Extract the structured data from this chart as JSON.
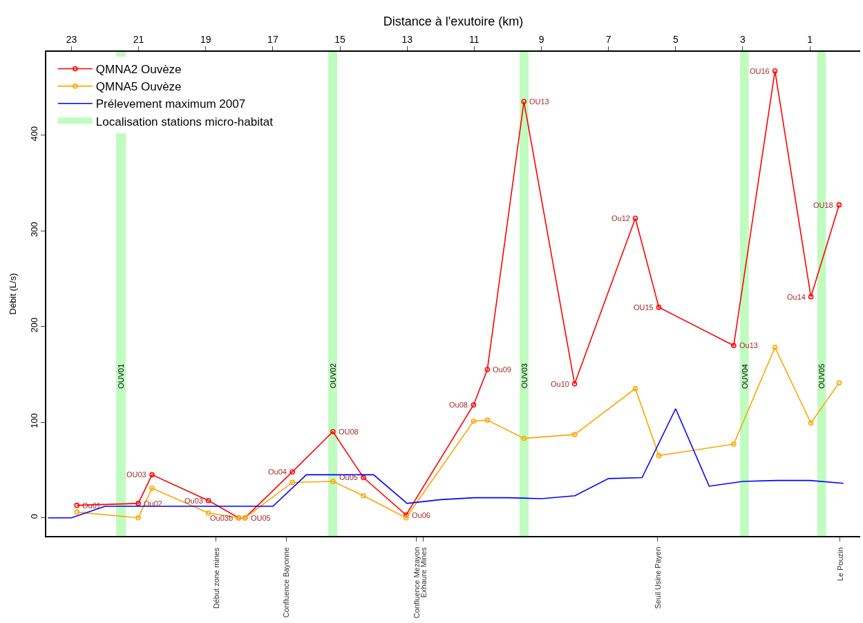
{
  "chart_data": {
    "type": "line",
    "xlabel": "Distance à l'exutoire (km)",
    "ylabel": "Débit (L/s)",
    "x": [
      22.84,
      21.01,
      20.6,
      18.92,
      18.02,
      17.83,
      16.42,
      15.21,
      14.3,
      13.03,
      11.02,
      10.61,
      9.52,
      8.01,
      6.2,
      5.5,
      3.27,
      2.04,
      0.97,
      0.13
    ],
    "series": [
      {
        "name": "QMNA2 Ouvèze",
        "color": "#ff0000",
        "marker": "circle",
        "values": [
          13,
          15,
          45,
          18,
          0,
          0,
          48,
          90,
          42,
          3,
          118,
          155,
          435,
          140,
          313,
          220,
          180,
          467,
          231,
          327
        ]
      },
      {
        "name": "QMNA5 Ouvèze",
        "color": "#ffa500",
        "marker": "circle",
        "values": [
          6,
          0,
          31,
          5,
          0,
          0,
          37,
          38,
          23,
          0,
          101,
          102,
          83,
          87,
          135,
          65,
          77,
          178,
          99,
          141
        ]
      },
      {
        "name": "Prélevement maximum 2007",
        "color": "#0000ff",
        "marker": "none",
        "x": [
          23.7,
          23,
          22,
          17,
          16,
          14,
          13,
          12,
          11,
          10,
          9,
          8,
          7,
          6,
          5,
          4,
          3,
          2,
          1,
          0
        ],
        "values": [
          0,
          0,
          12,
          12,
          45,
          45,
          15,
          19,
          21,
          21,
          20,
          23,
          41,
          42,
          114,
          33,
          38,
          39,
          39,
          36
        ]
      }
    ],
    "bands": [
      {
        "axis": "x",
        "from": 21.67,
        "to": 21.38,
        "color": "#c0fcc0",
        "label": "OUV01"
      },
      {
        "axis": "x",
        "from": 15.35,
        "to": 15.08,
        "color": "#c0fcc0",
        "label": "OUV02"
      },
      {
        "axis": "x",
        "from": 9.65,
        "to": 9.38,
        "color": "#c0fcc0",
        "label": "OUV03"
      },
      {
        "axis": "x",
        "from": 3.08,
        "to": 2.82,
        "color": "#c0fcc0",
        "label": "OUV04"
      },
      {
        "axis": "x",
        "from": 0.78,
        "to": 0.52,
        "color": "#c0fcc0",
        "label": "OUV05"
      }
    ],
    "annotations": [
      "Localisation stations micro-habitat",
      {
        "text": "Ou01",
        "x": 22.84,
        "y": 13
      },
      {
        "text": "Ou02",
        "x": 21.01,
        "y": 15
      },
      {
        "text": "OU03",
        "x": 20.6,
        "y": 45
      },
      {
        "text": "Ou03",
        "x": 18.92,
        "y": 18
      },
      {
        "text": "Ou03b",
        "x": 18.02,
        "y": 0
      },
      {
        "text": "OU05",
        "x": 17.83,
        "y": 0
      },
      {
        "text": "Ou04",
        "x": 16.42,
        "y": 48
      },
      {
        "text": "OU08",
        "x": 15.21,
        "y": 90
      },
      {
        "text": "Ou05",
        "x": 14.3,
        "y": 42
      },
      {
        "text": "Ou06",
        "x": 13.03,
        "y": 3
      },
      {
        "text": "Ou08",
        "x": 11.02,
        "y": 118
      },
      {
        "text": "Ou09",
        "x": 10.61,
        "y": 155
      },
      {
        "text": "OU13",
        "x": 9.52,
        "y": 435
      },
      {
        "text": "Ou10",
        "x": 8.01,
        "y": 140
      },
      {
        "text": "Ou12",
        "x": 6.2,
        "y": 313
      },
      {
        "text": "OU15",
        "x": 5.5,
        "y": 220
      },
      {
        "text": "Ou13",
        "x": 3.27,
        "y": 180
      },
      {
        "text": "OU16",
        "x": 2.04,
        "y": 467
      },
      {
        "text": "Ou14",
        "x": 0.97,
        "y": 231
      },
      {
        "text": "OU18",
        "x": 0.13,
        "y": 327
      }
    ],
    "ref_lines": [
      {
        "axis": "x",
        "value": 18.69,
        "label": "Début zone mines"
      },
      {
        "axis": "x",
        "value": 16.6,
        "label": "Confluence Bayonne"
      },
      {
        "axis": "x",
        "value": 12.72,
        "label": "Confluence Mezayon"
      },
      {
        "axis": "x",
        "value": 12.52,
        "label": "Exhaure Mines"
      },
      {
        "axis": "x",
        "value": 5.54,
        "label": "Seuil Usine Payen"
      },
      {
        "axis": "x",
        "value": 0.1,
        "label": "Le Pouzin"
      }
    ],
    "xlim": [
      23.75,
      -0.5
    ],
    "xticks": [
      23,
      21,
      19,
      17,
      15,
      13,
      11,
      9,
      7,
      5,
      3,
      1
    ],
    "ylim": [
      -19,
      487
    ],
    "yticks": [
      0,
      100,
      200,
      300,
      400
    ],
    "grid": false,
    "legend": "top left"
  }
}
